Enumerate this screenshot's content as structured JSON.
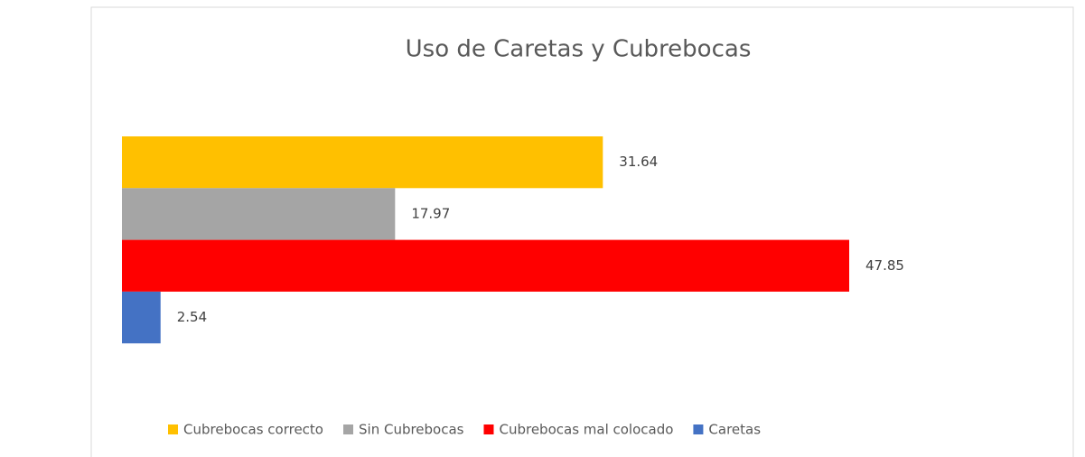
{
  "chart_data": {
    "type": "bar",
    "orientation": "horizontal",
    "title": "Uso de Caretas y Cubrebocas",
    "legend": "bottom",
    "series": [
      {
        "name": "Cubrebocas correcto",
        "color": "#FFC000",
        "values": [
          31.64
        ]
      },
      {
        "name": "Sin Cubrebocas",
        "color": "#A5A5A5",
        "values": [
          17.97
        ]
      },
      {
        "name": "Cubrebocas mal colocado",
        "color": "#FF0000",
        "values": [
          47.85
        ]
      },
      {
        "name": "Caretas",
        "color": "#4472C4",
        "values": [
          2.54
        ]
      }
    ]
  }
}
